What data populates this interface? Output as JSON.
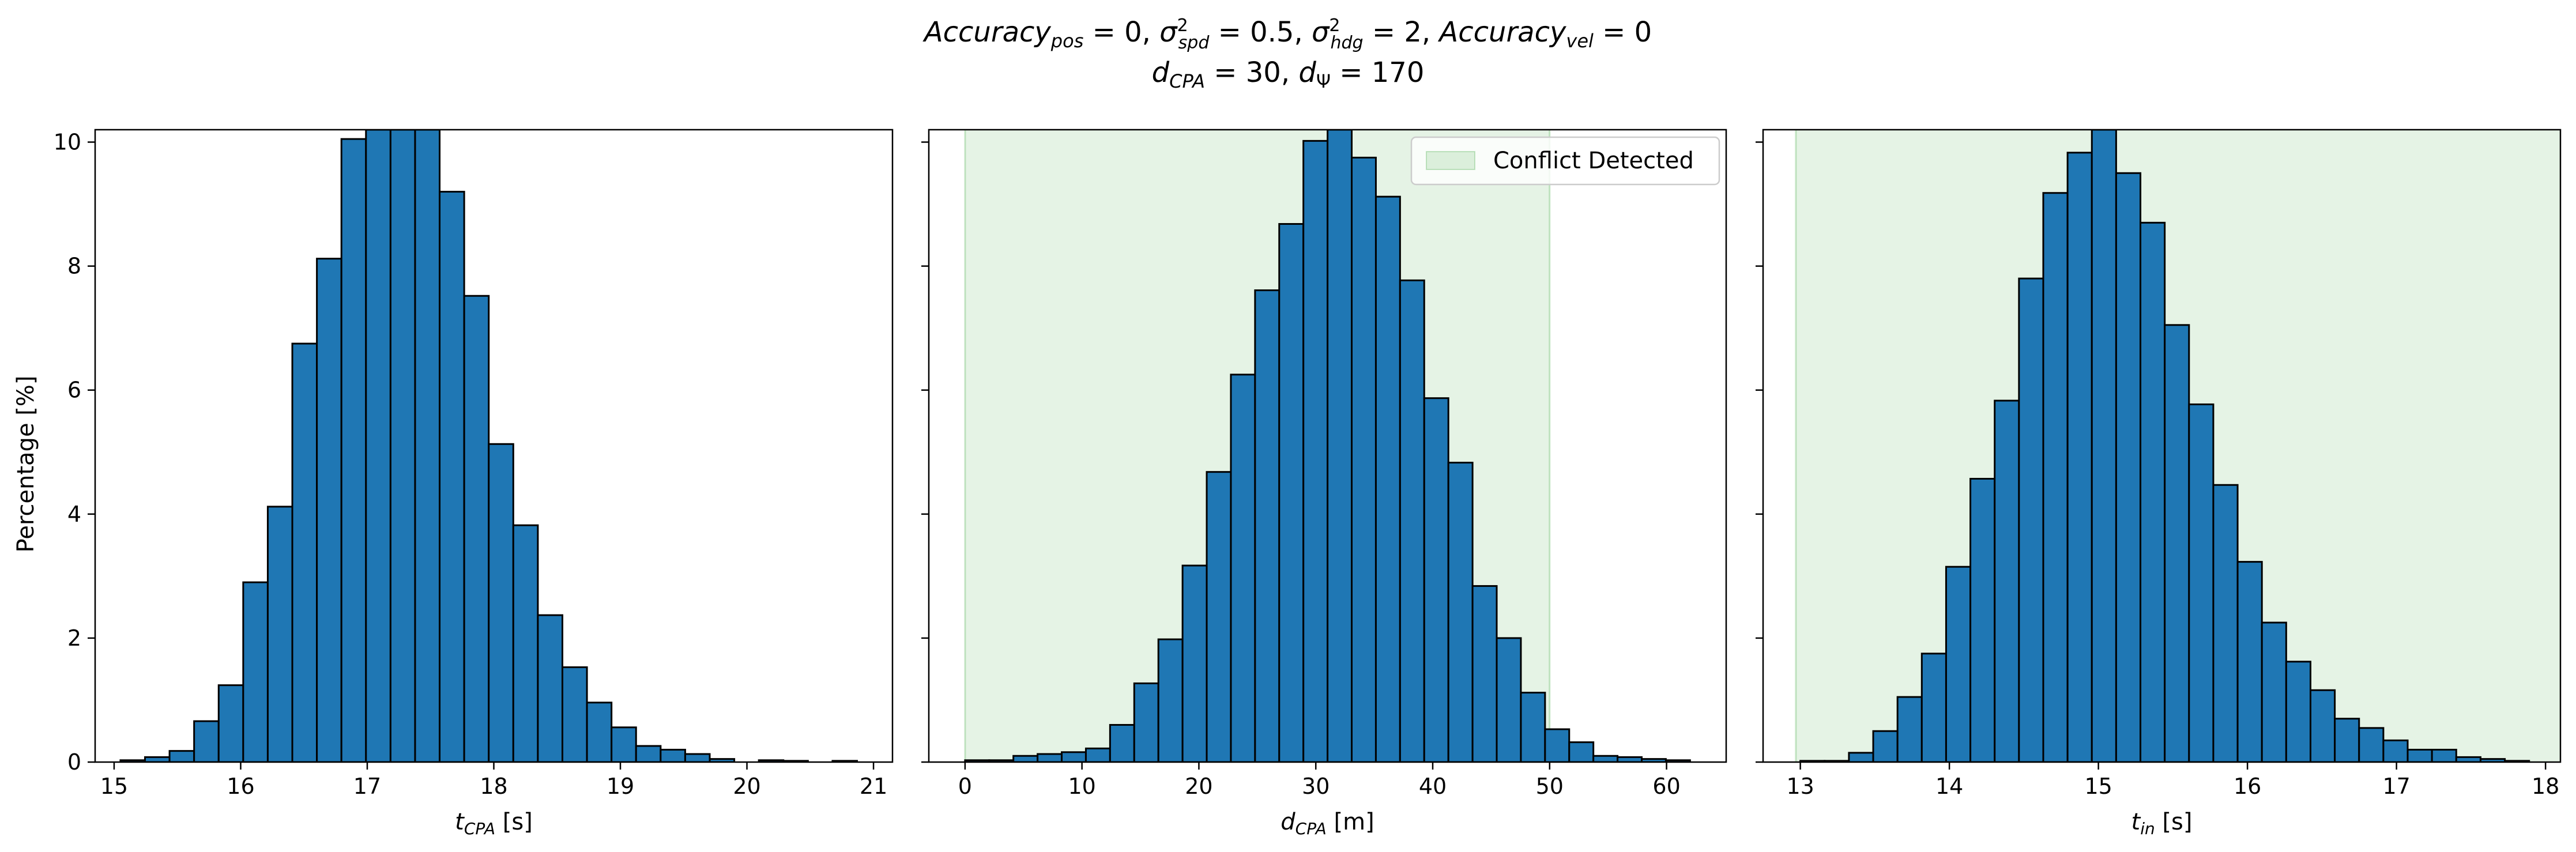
{
  "title": {
    "line1": {
      "acc_pos": "Accuracy",
      "acc_pos_sub": "pos",
      "acc_pos_val": " = 0, ",
      "sigma": "σ",
      "sup2": "2",
      "spd_sub": "spd",
      "spd_val": " = 0.5, ",
      "hdg_sub": "hdg",
      "hdg_val": " = 2, ",
      "acc_vel": "Accuracy",
      "acc_vel_sub": "vel",
      "acc_vel_val": " = 0"
    },
    "line2": {
      "d": "d",
      "cpa_sub": "CPA",
      "cpa_val": " = 30, ",
      "d2": "d",
      "psi_sub": "Ψ",
      "psi_val": " = 170"
    }
  },
  "ylabel": "Percentage [%]",
  "legend": {
    "label": "Conflict Detected",
    "color": "#d9ead6"
  },
  "colors": {
    "bar": "#1f77b4",
    "edge": "#000000",
    "shade": "#2ca02c"
  },
  "chart_data": [
    {
      "type": "bar",
      "xlabel_main": "t",
      "xlabel_sub": "CPA",
      "xlabel_unit": " [s]",
      "xlim": [
        14.85,
        21.15
      ],
      "ylim": [
        0,
        10.2
      ],
      "xticks": [
        15,
        16,
        17,
        18,
        19,
        20,
        21
      ],
      "yticks": [
        0,
        2,
        4,
        6,
        8,
        10
      ],
      "bin_start": 15.05,
      "bin_width": 0.194,
      "values": [
        0.03,
        0.08,
        0.18,
        0.66,
        1.24,
        2.9,
        4.12,
        6.75,
        8.12,
        10.05,
        10.2,
        10.2,
        10.2,
        9.2,
        7.52,
        5.13,
        3.82,
        2.37,
        1.53,
        0.96,
        0.56,
        0.26,
        0.2,
        0.13,
        0.05,
        0.0,
        0.03,
        0.02,
        0.0,
        0.02
      ],
      "shade": null
    },
    {
      "type": "bar",
      "xlabel_main": "d",
      "xlabel_sub": "CPA",
      "xlabel_unit": " [m]",
      "xlim": [
        -3.1,
        65.1
      ],
      "ylim": [
        0,
        10.2
      ],
      "xticks": [
        0,
        10,
        20,
        30,
        40,
        50,
        60
      ],
      "yticks": [
        0,
        2,
        4,
        6,
        8,
        10
      ],
      "bin_start": 0.0,
      "bin_width": 2.067,
      "values": [
        0.03,
        0.03,
        0.1,
        0.13,
        0.16,
        0.22,
        0.6,
        1.27,
        1.98,
        3.17,
        4.68,
        6.25,
        7.61,
        8.68,
        10.02,
        10.2,
        9.75,
        9.12,
        7.77,
        5.87,
        4.83,
        2.84,
        2.0,
        1.12,
        0.53,
        0.32,
        0.1,
        0.08,
        0.05,
        0.03
      ],
      "shade": [
        0,
        50
      ],
      "legend": true
    },
    {
      "type": "bar",
      "xlabel_main": "t",
      "xlabel_sub": "in",
      "xlabel_unit": " [s]",
      "xlim": [
        12.75,
        18.1
      ],
      "ylim": [
        0,
        10.2
      ],
      "xticks": [
        13,
        14,
        15,
        16,
        17,
        18
      ],
      "yticks": [
        0,
        2,
        4,
        6,
        8,
        10
      ],
      "bin_start": 13.0,
      "bin_width": 0.163,
      "values": [
        0.02,
        0.02,
        0.15,
        0.5,
        1.05,
        1.75,
        3.15,
        4.57,
        5.83,
        7.8,
        9.18,
        9.83,
        10.2,
        9.5,
        8.7,
        7.05,
        5.77,
        4.47,
        3.23,
        2.25,
        1.62,
        1.16,
        0.7,
        0.55,
        0.35,
        0.2,
        0.2,
        0.08,
        0.05,
        0.02
      ],
      "shade": [
        12.97,
        18.1
      ]
    }
  ]
}
